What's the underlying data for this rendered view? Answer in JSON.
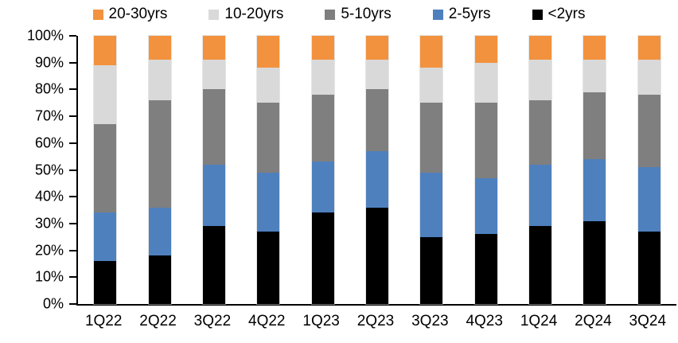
{
  "chart_data": {
    "type": "bar",
    "subtype": "stacked-100-percent",
    "title": "",
    "xlabel": "",
    "ylabel": "",
    "grid": false,
    "background_color": "#ffffff",
    "categories": [
      "1Q22",
      "2Q22",
      "3Q22",
      "4Q22",
      "1Q23",
      "2Q23",
      "3Q23",
      "4Q23",
      "1Q24",
      "2Q24",
      "3Q24"
    ],
    "series": [
      {
        "name": "<2yrs",
        "color": "#000000",
        "values": [
          16,
          18,
          29,
          27,
          34,
          36,
          25,
          26,
          29,
          31,
          27
        ]
      },
      {
        "name": "2-5yrs",
        "color": "#4E80BE",
        "values": [
          18,
          18,
          23,
          22,
          19,
          21,
          24,
          21,
          23,
          23,
          24
        ]
      },
      {
        "name": "5-10yrs",
        "color": "#7F7F7F",
        "values": [
          33,
          40,
          28,
          26,
          25,
          23,
          26,
          28,
          24,
          25,
          27
        ]
      },
      {
        "name": "10-20yrs",
        "color": "#D9D9D9",
        "values": [
          22,
          15,
          11,
          13,
          13,
          11,
          13,
          15,
          15,
          12,
          13
        ]
      },
      {
        "name": "20-30yrs",
        "color": "#F2923E",
        "values": [
          11,
          9,
          9,
          12,
          9,
          9,
          12,
          10,
          9,
          9,
          9
        ]
      }
    ],
    "stack_order_bottom_to_top": [
      "<2yrs",
      "2-5yrs",
      "5-10yrs",
      "10-20yrs",
      "20-30yrs"
    ],
    "legend": {
      "position": "top",
      "order": [
        "20-30yrs",
        "10-20yrs",
        "5-10yrs",
        "2-5yrs",
        "<2yrs"
      ]
    },
    "y_axis": {
      "min": 0,
      "max": 100,
      "tick_step": 10,
      "unit": "%",
      "tick_labels": [
        "0%",
        "10%",
        "20%",
        "30%",
        "40%",
        "50%",
        "60%",
        "70%",
        "80%",
        "90%",
        "100%"
      ]
    }
  }
}
